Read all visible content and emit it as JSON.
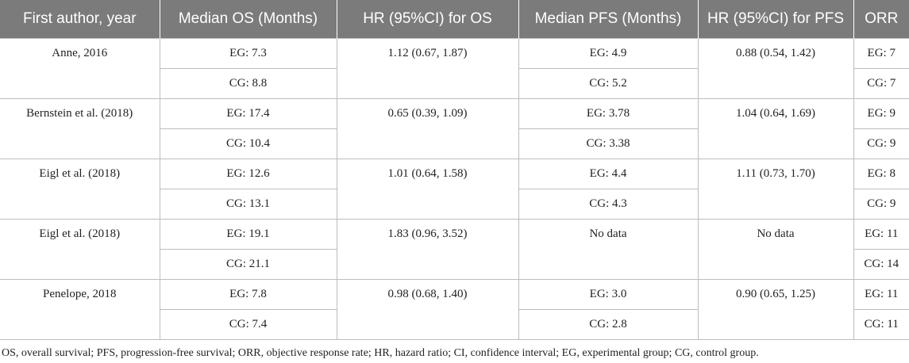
{
  "headers": [
    "First author, year",
    "Median OS (Months)",
    "HR (95%CI) for OS",
    "Median PFS (Months)",
    "HR (95%CI) for PFS",
    "ORR"
  ],
  "studies": [
    {
      "author": "Anne, 2016",
      "os_eg": "EG: 7.3",
      "os_cg": "CG: 8.8",
      "hr_os": "1.12 (0.67, 1.87)",
      "pfs_eg": "EG: 4.9",
      "pfs_cg": "CG: 5.2",
      "hr_pfs": "0.88 (0.54, 1.42)",
      "orr_eg": "EG: 7",
      "orr_cg": "CG: 7"
    },
    {
      "author": "Bernstein et al. (2018)",
      "os_eg": "EG: 17.4",
      "os_cg": "CG: 10.4",
      "hr_os": "0.65 (0.39, 1.09)",
      "pfs_eg": "EG: 3.78",
      "pfs_cg": "CG: 3.38",
      "hr_pfs": "1.04 (0.64, 1.69)",
      "orr_eg": "EG: 9",
      "orr_cg": "CG: 9"
    },
    {
      "author": "Eigl et al. (2018)",
      "os_eg": "EG: 12.6",
      "os_cg": "CG: 13.1",
      "hr_os": "1.01 (0.64, 1.58)",
      "pfs_eg": "EG: 4.4",
      "pfs_cg": "CG: 4.3",
      "hr_pfs": "1.11 (0.73, 1.70)",
      "orr_eg": "EG: 8",
      "orr_cg": "CG: 9"
    },
    {
      "author": "Eigl et al. (2018)",
      "os_eg": "EG: 19.1",
      "os_cg": "CG: 21.1",
      "hr_os": "1.83 (0.96, 3.52)",
      "pfs_nodata": "No data",
      "hr_pfs": "No data",
      "orr_eg": "EG: 11",
      "orr_cg": "CG: 14"
    },
    {
      "author": "Penelope, 2018",
      "os_eg": "EG: 7.8",
      "os_cg": "CG: 7.4",
      "hr_os": "0.98 (0.68, 1.40)",
      "pfs_eg": "EG: 3.0",
      "pfs_cg": "CG: 2.8",
      "hr_pfs": "0.90 (0.65, 1.25)",
      "orr_eg": "EG: 11",
      "orr_cg": "CG: 11"
    }
  ],
  "footnote": "OS, overall survival; PFS, progression-free survival; ORR, objective response rate; HR, hazard ratio; CI, confidence interval; EG, experimental group; CG, control group."
}
